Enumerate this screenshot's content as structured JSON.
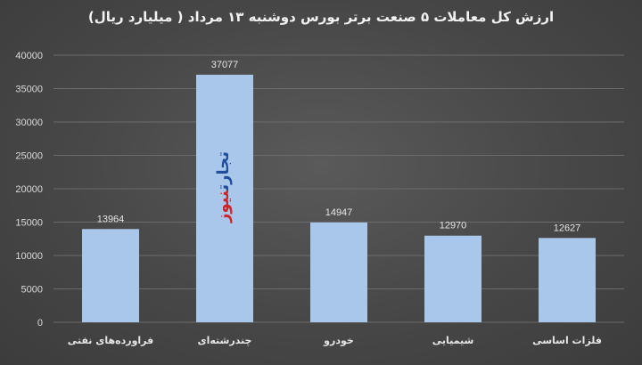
{
  "chart_data": {
    "type": "bar",
    "title": "ارزش کل معاملات ۵ صنعت برتر بورس دوشنبه ۱۳ مرداد ( میلیارد ریال)",
    "categories": [
      "فراورده‌های نفتی",
      "چندرشته‌ای",
      "خودرو",
      "شیمیایی",
      "فلزات اساسی"
    ],
    "values": [
      13964,
      37077,
      14947,
      12970,
      12627
    ],
    "data_labels": [
      "13964",
      "37077",
      "14947",
      "12970",
      "12627"
    ],
    "ylim": [
      0,
      40000
    ],
    "yticks": [
      0,
      5000,
      10000,
      15000,
      20000,
      25000,
      30000,
      35000,
      40000
    ],
    "ytick_labels": [
      "0",
      "5000",
      "10000",
      "15000",
      "20000",
      "25000",
      "30000",
      "35000",
      "40000"
    ],
    "grid": true,
    "bar_color": "#a9c7ea",
    "grid_color": "#6b6b6b"
  },
  "watermark": {
    "part_a": "تجارت",
    "part_b": "نیوز"
  }
}
